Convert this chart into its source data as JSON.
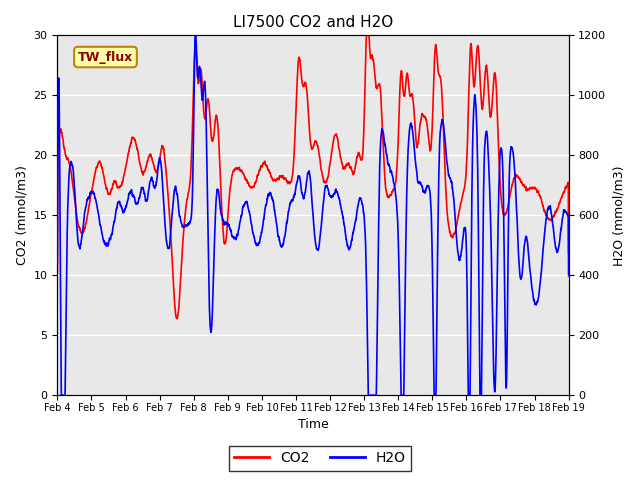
{
  "title": "LI7500 CO2 and H2O",
  "xlabel": "Time",
  "ylabel_left": "CO2 (mmol/m3)",
  "ylabel_right": "H2O (mmol/m3)",
  "xlim": [
    0,
    360
  ],
  "ylim_left": [
    0,
    30
  ],
  "ylim_right": [
    0,
    1200
  ],
  "xtick_labels": [
    "Feb 4",
    "Feb 5",
    "Feb 6",
    "Feb 7",
    "Feb 8",
    "Feb 9",
    "Feb 10",
    "Feb 11",
    "Feb 12",
    "Feb 13",
    "Feb 14",
    "Feb 15",
    "Feb 16",
    "Feb 17",
    "Feb 18",
    "Feb 19"
  ],
  "xtick_positions": [
    0,
    24,
    48,
    72,
    96,
    120,
    144,
    168,
    192,
    216,
    240,
    264,
    288,
    312,
    336,
    360
  ],
  "yticks_left": [
    0,
    5,
    10,
    15,
    20,
    25,
    30
  ],
  "yticks_right": [
    0,
    200,
    400,
    600,
    800,
    1000,
    1200
  ],
  "legend_labels": [
    "CO2",
    "H2O"
  ],
  "annotation_text": "TW_flux",
  "bg_color": "#e8e8e8",
  "fig_color": "#ffffff",
  "line_width": 1.2
}
